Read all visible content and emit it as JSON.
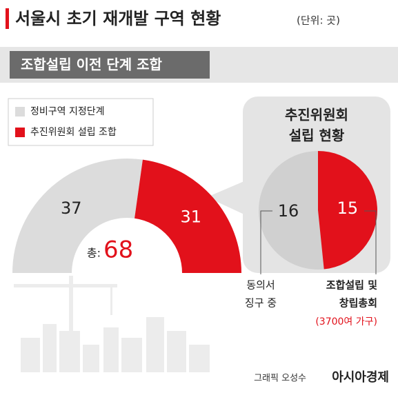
{
  "header": {
    "title": "서울시 초기 재개발 구역 현황",
    "unit": "(단위: 곳)",
    "section": "조합설립 이전 단계 조합",
    "credit": "그래픽 오성수",
    "brand": "아시아경제"
  },
  "chart_data": [
    {
      "type": "half-donut",
      "categories": [
        "정비구역 지정단계",
        "추진위원회 설립 조합"
      ],
      "values": [
        37,
        31
      ],
      "colors": [
        "#dcdcdc",
        "#e2111b"
      ],
      "total_label": "총:",
      "total": 68
    },
    {
      "type": "pie",
      "title_lines": [
        "추진위원회",
        "설립 현황"
      ],
      "categories": [
        [
          "동의서",
          "징구 중"
        ],
        [
          "조합설립 및",
          "창립총회"
        ]
      ],
      "values": [
        16,
        15
      ],
      "colors": [
        "#d0d0d0",
        "#e2111b"
      ],
      "annotation": "(3700여 가구)"
    }
  ]
}
